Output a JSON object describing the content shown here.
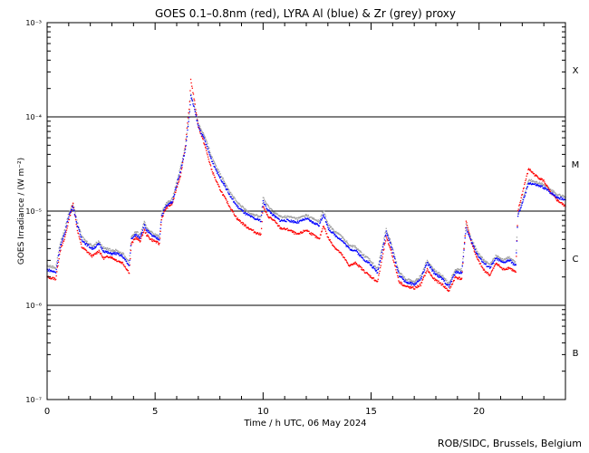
{
  "chart_data": {
    "type": "scatter",
    "title": "GOES 0.1–0.8nm (red), LYRA Al (blue) & Zr (grey) proxy",
    "xlabel": "Time / h UTC, 06 May 2024",
    "ylabel": "GOES Irradiance / (W m⁻²)",
    "xlim": [
      0,
      24
    ],
    "ylim_log10": [
      -7,
      -3
    ],
    "y_scale": "log",
    "x_ticks": [
      0,
      5,
      10,
      15,
      20
    ],
    "x_tick_labels": [
      "0",
      "5",
      "10",
      "15",
      "20"
    ],
    "y_ticks_log10": [
      -7,
      -6,
      -5,
      -4,
      -3
    ],
    "y_tick_labels": [
      "10⁻⁷",
      "10⁻⁶",
      "10⁻⁵",
      "10⁻⁴",
      "10⁻³"
    ],
    "class_thresholds_log10": [
      -6,
      -5,
      -4
    ],
    "class_labels": [
      {
        "label": "X",
        "log10_y": -3.5
      },
      {
        "label": "M",
        "log10_y": -4.5
      },
      {
        "label": "C",
        "log10_y": -5.5
      },
      {
        "label": "B",
        "log10_y": -6.5
      }
    ],
    "series": [
      {
        "name": "GOES 0.1-0.8nm",
        "color": "#ff0000",
        "points": [
          [
            0,
            -5.7
          ],
          [
            0.4,
            -5.72
          ],
          [
            0.6,
            -5.42
          ],
          [
            0.8,
            -5.3
          ],
          [
            1.0,
            -5.1
          ],
          [
            1.2,
            -4.92
          ],
          [
            1.4,
            -5.2
          ],
          [
            1.6,
            -5.38
          ],
          [
            1.8,
            -5.42
          ],
          [
            2.1,
            -5.48
          ],
          [
            2.4,
            -5.42
          ],
          [
            2.6,
            -5.5
          ],
          [
            2.9,
            -5.48
          ],
          [
            3.2,
            -5.52
          ],
          [
            3.5,
            -5.55
          ],
          [
            3.7,
            -5.62
          ],
          [
            3.8,
            -5.65
          ],
          [
            3.9,
            -5.35
          ],
          [
            4.1,
            -5.28
          ],
          [
            4.3,
            -5.32
          ],
          [
            4.5,
            -5.2
          ],
          [
            4.6,
            -5.25
          ],
          [
            4.8,
            -5.3
          ],
          [
            5.0,
            -5.32
          ],
          [
            5.2,
            -5.35
          ],
          [
            5.3,
            -5.08
          ],
          [
            5.5,
            -4.97
          ],
          [
            5.8,
            -4.92
          ],
          [
            6.0,
            -4.75
          ],
          [
            6.2,
            -4.6
          ],
          [
            6.4,
            -4.3
          ],
          [
            6.6,
            -3.85
          ],
          [
            6.65,
            -3.6
          ],
          [
            6.8,
            -3.8
          ],
          [
            7.0,
            -4.1
          ],
          [
            7.3,
            -4.3
          ],
          [
            7.6,
            -4.55
          ],
          [
            7.9,
            -4.72
          ],
          [
            8.2,
            -4.85
          ],
          [
            8.5,
            -4.97
          ],
          [
            8.8,
            -5.08
          ],
          [
            9.2,
            -5.16
          ],
          [
            9.6,
            -5.22
          ],
          [
            9.9,
            -5.25
          ],
          [
            10.0,
            -4.95
          ],
          [
            10.2,
            -5.05
          ],
          [
            10.5,
            -5.1
          ],
          [
            10.8,
            -5.18
          ],
          [
            11.2,
            -5.2
          ],
          [
            11.6,
            -5.25
          ],
          [
            12.0,
            -5.2
          ],
          [
            12.3,
            -5.25
          ],
          [
            12.6,
            -5.3
          ],
          [
            12.8,
            -5.15
          ],
          [
            13.0,
            -5.28
          ],
          [
            13.3,
            -5.38
          ],
          [
            13.6,
            -5.45
          ],
          [
            14.0,
            -5.58
          ],
          [
            14.3,
            -5.55
          ],
          [
            14.6,
            -5.62
          ],
          [
            14.9,
            -5.68
          ],
          [
            15.3,
            -5.75
          ],
          [
            15.7,
            -5.28
          ],
          [
            15.9,
            -5.4
          ],
          [
            16.3,
            -5.75
          ],
          [
            16.6,
            -5.8
          ],
          [
            17.0,
            -5.82
          ],
          [
            17.3,
            -5.78
          ],
          [
            17.6,
            -5.62
          ],
          [
            17.9,
            -5.72
          ],
          [
            18.3,
            -5.78
          ],
          [
            18.6,
            -5.85
          ],
          [
            18.9,
            -5.7
          ],
          [
            19.2,
            -5.72
          ],
          [
            19.4,
            -5.1
          ],
          [
            19.6,
            -5.3
          ],
          [
            19.9,
            -5.5
          ],
          [
            20.2,
            -5.62
          ],
          [
            20.5,
            -5.68
          ],
          [
            20.8,
            -5.55
          ],
          [
            21.1,
            -5.62
          ],
          [
            21.4,
            -5.6
          ],
          [
            21.7,
            -5.65
          ],
          [
            21.8,
            -5.0
          ],
          [
            22.1,
            -4.72
          ],
          [
            22.3,
            -4.55
          ],
          [
            22.6,
            -4.62
          ],
          [
            23.0,
            -4.68
          ],
          [
            23.3,
            -4.8
          ],
          [
            23.6,
            -4.88
          ],
          [
            24.0,
            -4.95
          ]
        ]
      },
      {
        "name": "LYRA Al proxy",
        "color": "#0000ff",
        "points": [
          [
            0,
            -5.62
          ],
          [
            0.4,
            -5.65
          ],
          [
            0.6,
            -5.38
          ],
          [
            0.8,
            -5.25
          ],
          [
            1.0,
            -5.05
          ],
          [
            1.2,
            -4.95
          ],
          [
            1.4,
            -5.15
          ],
          [
            1.6,
            -5.3
          ],
          [
            1.8,
            -5.35
          ],
          [
            2.1,
            -5.4
          ],
          [
            2.4,
            -5.35
          ],
          [
            2.6,
            -5.42
          ],
          [
            2.9,
            -5.45
          ],
          [
            3.2,
            -5.45
          ],
          [
            3.5,
            -5.48
          ],
          [
            3.7,
            -5.55
          ],
          [
            3.8,
            -5.58
          ],
          [
            3.9,
            -5.3
          ],
          [
            4.1,
            -5.25
          ],
          [
            4.3,
            -5.28
          ],
          [
            4.5,
            -5.15
          ],
          [
            4.6,
            -5.2
          ],
          [
            4.8,
            -5.25
          ],
          [
            5.0,
            -5.28
          ],
          [
            5.2,
            -5.3
          ],
          [
            5.3,
            -5.05
          ],
          [
            5.5,
            -4.95
          ],
          [
            5.8,
            -4.9
          ],
          [
            6.0,
            -4.72
          ],
          [
            6.2,
            -4.55
          ],
          [
            6.4,
            -4.35
          ],
          [
            6.6,
            -3.95
          ],
          [
            6.65,
            -3.78
          ],
          [
            6.8,
            -3.9
          ],
          [
            7.0,
            -4.1
          ],
          [
            7.3,
            -4.25
          ],
          [
            7.6,
            -4.45
          ],
          [
            7.9,
            -4.6
          ],
          [
            8.2,
            -4.72
          ],
          [
            8.5,
            -4.85
          ],
          [
            8.8,
            -4.95
          ],
          [
            9.2,
            -5.03
          ],
          [
            9.6,
            -5.08
          ],
          [
            9.9,
            -5.1
          ],
          [
            10.0,
            -4.9
          ],
          [
            10.2,
            -4.98
          ],
          [
            10.5,
            -5.05
          ],
          [
            10.8,
            -5.1
          ],
          [
            11.2,
            -5.1
          ],
          [
            11.6,
            -5.12
          ],
          [
            12.0,
            -5.08
          ],
          [
            12.3,
            -5.12
          ],
          [
            12.6,
            -5.15
          ],
          [
            12.8,
            -5.03
          ],
          [
            13.0,
            -5.18
          ],
          [
            13.3,
            -5.25
          ],
          [
            13.6,
            -5.3
          ],
          [
            14.0,
            -5.4
          ],
          [
            14.3,
            -5.42
          ],
          [
            14.6,
            -5.5
          ],
          [
            14.9,
            -5.55
          ],
          [
            15.3,
            -5.65
          ],
          [
            15.7,
            -5.22
          ],
          [
            15.9,
            -5.35
          ],
          [
            16.3,
            -5.68
          ],
          [
            16.6,
            -5.75
          ],
          [
            17.0,
            -5.78
          ],
          [
            17.3,
            -5.72
          ],
          [
            17.6,
            -5.55
          ],
          [
            17.9,
            -5.65
          ],
          [
            18.3,
            -5.72
          ],
          [
            18.6,
            -5.8
          ],
          [
            18.9,
            -5.65
          ],
          [
            19.2,
            -5.65
          ],
          [
            19.4,
            -5.18
          ],
          [
            19.6,
            -5.3
          ],
          [
            19.9,
            -5.45
          ],
          [
            20.2,
            -5.55
          ],
          [
            20.5,
            -5.6
          ],
          [
            20.8,
            -5.5
          ],
          [
            21.1,
            -5.55
          ],
          [
            21.4,
            -5.52
          ],
          [
            21.7,
            -5.58
          ],
          [
            21.8,
            -5.05
          ],
          [
            22.1,
            -4.85
          ],
          [
            22.3,
            -4.7
          ],
          [
            22.6,
            -4.72
          ],
          [
            23.0,
            -4.75
          ],
          [
            23.3,
            -4.8
          ],
          [
            23.6,
            -4.85
          ],
          [
            24.0,
            -4.88
          ]
        ]
      },
      {
        "name": "LYRA Zr proxy",
        "color": "#a0a0a0",
        "points": [
          [
            0,
            -5.58
          ],
          [
            0.4,
            -5.6
          ],
          [
            0.6,
            -5.34
          ],
          [
            0.8,
            -5.21
          ],
          [
            1.0,
            -5.02
          ],
          [
            1.2,
            -4.92
          ],
          [
            1.4,
            -5.12
          ],
          [
            1.6,
            -5.27
          ],
          [
            1.8,
            -5.32
          ],
          [
            2.1,
            -5.37
          ],
          [
            2.4,
            -5.32
          ],
          [
            2.6,
            -5.39
          ],
          [
            2.9,
            -5.41
          ],
          [
            3.2,
            -5.42
          ],
          [
            3.5,
            -5.45
          ],
          [
            3.7,
            -5.51
          ],
          [
            3.8,
            -5.54
          ],
          [
            3.9,
            -5.27
          ],
          [
            4.1,
            -5.22
          ],
          [
            4.3,
            -5.25
          ],
          [
            4.5,
            -5.12
          ],
          [
            4.6,
            -5.17
          ],
          [
            4.8,
            -5.22
          ],
          [
            5.0,
            -5.25
          ],
          [
            5.2,
            -5.27
          ],
          [
            5.3,
            -5.02
          ],
          [
            5.5,
            -4.92
          ],
          [
            5.8,
            -4.87
          ],
          [
            6.0,
            -4.69
          ],
          [
            6.2,
            -4.52
          ],
          [
            6.4,
            -4.32
          ],
          [
            6.6,
            -3.92
          ],
          [
            6.65,
            -3.75
          ],
          [
            6.8,
            -3.87
          ],
          [
            7.0,
            -4.07
          ],
          [
            7.3,
            -4.21
          ],
          [
            7.6,
            -4.41
          ],
          [
            7.9,
            -4.56
          ],
          [
            8.2,
            -4.68
          ],
          [
            8.5,
            -4.81
          ],
          [
            8.8,
            -4.91
          ],
          [
            9.2,
            -4.99
          ],
          [
            9.6,
            -5.04
          ],
          [
            9.9,
            -5.06
          ],
          [
            10.0,
            -4.86
          ],
          [
            10.2,
            -4.94
          ],
          [
            10.5,
            -5.01
          ],
          [
            10.8,
            -5.06
          ],
          [
            11.2,
            -5.06
          ],
          [
            11.6,
            -5.08
          ],
          [
            12.0,
            -5.04
          ],
          [
            12.3,
            -5.08
          ],
          [
            12.6,
            -5.11
          ],
          [
            12.8,
            -4.99
          ],
          [
            13.0,
            -5.14
          ],
          [
            13.3,
            -5.21
          ],
          [
            13.6,
            -5.26
          ],
          [
            14.0,
            -5.36
          ],
          [
            14.3,
            -5.38
          ],
          [
            14.6,
            -5.46
          ],
          [
            14.9,
            -5.51
          ],
          [
            15.3,
            -5.61
          ],
          [
            15.7,
            -5.19
          ],
          [
            15.9,
            -5.32
          ],
          [
            16.3,
            -5.65
          ],
          [
            16.6,
            -5.72
          ],
          [
            17.0,
            -5.75
          ],
          [
            17.3,
            -5.69
          ],
          [
            17.6,
            -5.52
          ],
          [
            17.9,
            -5.62
          ],
          [
            18.3,
            -5.69
          ],
          [
            18.6,
            -5.77
          ],
          [
            18.9,
            -5.62
          ],
          [
            19.2,
            -5.62
          ],
          [
            19.4,
            -5.15
          ],
          [
            19.6,
            -5.27
          ],
          [
            19.9,
            -5.42
          ],
          [
            20.2,
            -5.52
          ],
          [
            20.5,
            -5.57
          ],
          [
            20.8,
            -5.47
          ],
          [
            21.1,
            -5.52
          ],
          [
            21.4,
            -5.49
          ],
          [
            21.7,
            -5.55
          ],
          [
            21.8,
            -5.02
          ],
          [
            22.1,
            -4.82
          ],
          [
            22.3,
            -4.67
          ],
          [
            22.6,
            -4.69
          ],
          [
            23.0,
            -4.72
          ],
          [
            23.3,
            -4.77
          ],
          [
            23.6,
            -4.82
          ],
          [
            24.0,
            -4.85
          ]
        ]
      }
    ]
  },
  "credit": "ROB/SIDC, Brussels, Belgium"
}
